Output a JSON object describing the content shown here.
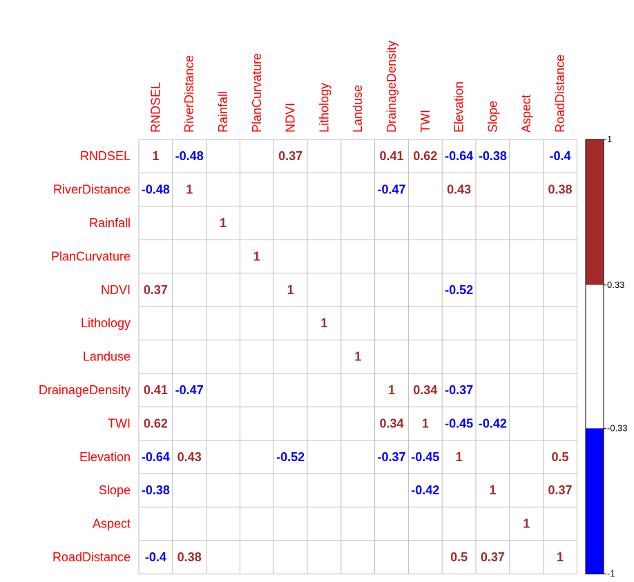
{
  "chart_data": {
    "type": "heatmap",
    "variables": [
      "RNDSEL",
      "RiverDistance",
      "Rainfall",
      "PlanCurvature",
      "NDVI",
      "Lithology",
      "Landuse",
      "DrainageDensity",
      "TWI",
      "Elevation",
      "Slope",
      "Aspect",
      "RoadDistance"
    ],
    "matrix": [
      [
        "1",
        "-0.48",
        "",
        "",
        "0.37",
        "",
        "",
        "0.41",
        "0.62",
        "-0.64",
        "-0.38",
        "",
        "-0.4"
      ],
      [
        "-0.48",
        "1",
        "",
        "",
        "",
        "",
        "",
        "-0.47",
        "",
        "0.43",
        "",
        "",
        "0.38"
      ],
      [
        "",
        "",
        "1",
        "",
        "",
        "",
        "",
        "",
        "",
        "",
        "",
        "",
        ""
      ],
      [
        "",
        "",
        "",
        "1",
        "",
        "",
        "",
        "",
        "",
        "",
        "",
        "",
        ""
      ],
      [
        "0.37",
        "",
        "",
        "",
        "1",
        "",
        "",
        "",
        "",
        "-0.52",
        "",
        "",
        ""
      ],
      [
        "",
        "",
        "",
        "",
        "",
        "1",
        "",
        "",
        "",
        "",
        "",
        "",
        ""
      ],
      [
        "",
        "",
        "",
        "",
        "",
        "",
        "1",
        "",
        "",
        "",
        "",
        "",
        ""
      ],
      [
        "0.41",
        "-0.47",
        "",
        "",
        "",
        "",
        "",
        "1",
        "0.34",
        "-0.37",
        "",
        "",
        ""
      ],
      [
        "0.62",
        "",
        "",
        "",
        "",
        "",
        "",
        "0.34",
        "1",
        "-0.45",
        "-0.42",
        "",
        ""
      ],
      [
        "-0.64",
        "0.43",
        "",
        "",
        "-0.52",
        "",
        "",
        "-0.37",
        "-0.45",
        "1",
        "",
        "",
        "0.5"
      ],
      [
        "-0.38",
        "",
        "",
        "",
        "",
        "",
        "",
        "",
        "-0.42",
        "",
        "1",
        "",
        "0.37"
      ],
      [
        "",
        "",
        "",
        "",
        "",
        "",
        "",
        "",
        "",
        "",
        "",
        "1",
        ""
      ],
      [
        "-0.4",
        "0.38",
        "",
        "",
        "",
        "",
        "",
        "",
        "",
        "0.5",
        "0.37",
        "",
        "1"
      ]
    ],
    "value_range": [
      -1,
      1
    ],
    "colorbar": {
      "ticks": [
        "1",
        "0.33",
        "-0.33",
        "-1"
      ],
      "segments": [
        {
          "from": 1,
          "to": 0.33,
          "color": "#a52a2a"
        },
        {
          "from": 0.33,
          "to": -0.33,
          "color": "#ffffff"
        },
        {
          "from": -0.33,
          "to": -1,
          "color": "#0000ff"
        }
      ]
    },
    "colors": {
      "label": "#ff0000",
      "positive_text": "#a52a2a",
      "negative_text": "#0000ff",
      "grid": "#bebebe"
    }
  }
}
